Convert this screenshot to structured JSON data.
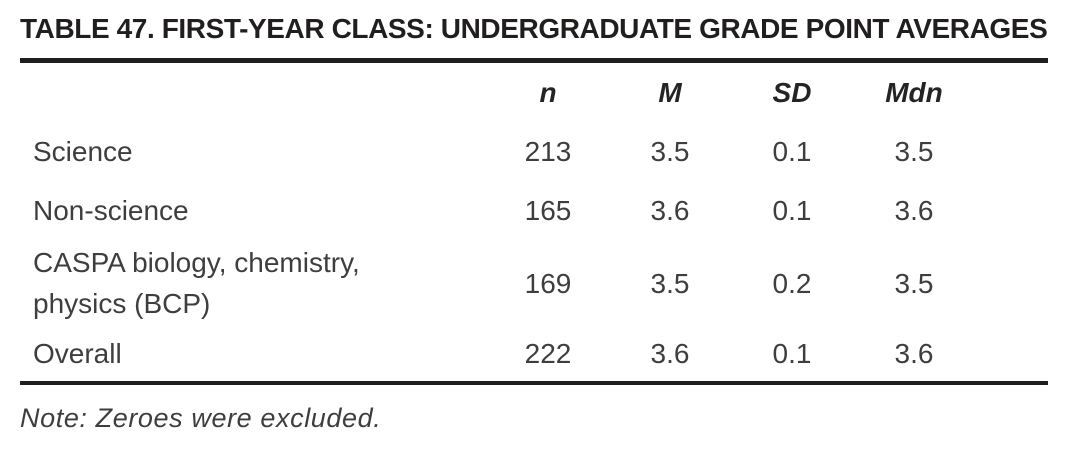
{
  "table": {
    "title": "TABLE 47. FIRST-YEAR CLASS: UNDERGRADUATE GRADE POINT AVERAGES",
    "columns": [
      "n",
      "M",
      "SD",
      "Mdn"
    ],
    "rows": [
      {
        "label": "Science",
        "n": "213",
        "m": "3.5",
        "sd": "0.1",
        "mdn": "3.5"
      },
      {
        "label": "Non-science",
        "n": "165",
        "m": "3.6",
        "sd": "0.1",
        "mdn": "3.6"
      },
      {
        "label": "CASPA biology, chemistry, physics (BCP)",
        "n": "169",
        "m": "3.5",
        "sd": "0.2",
        "mdn": "3.5"
      },
      {
        "label": "Overall",
        "n": "222",
        "m": "3.6",
        "sd": "0.1",
        "mdn": "3.6"
      }
    ],
    "note": "Note: Zeroes were excluded."
  },
  "colors": {
    "background": "#ffffff",
    "heading_text": "#211e1e",
    "body_text": "#3e3e3e",
    "rule": "#211e1e"
  }
}
